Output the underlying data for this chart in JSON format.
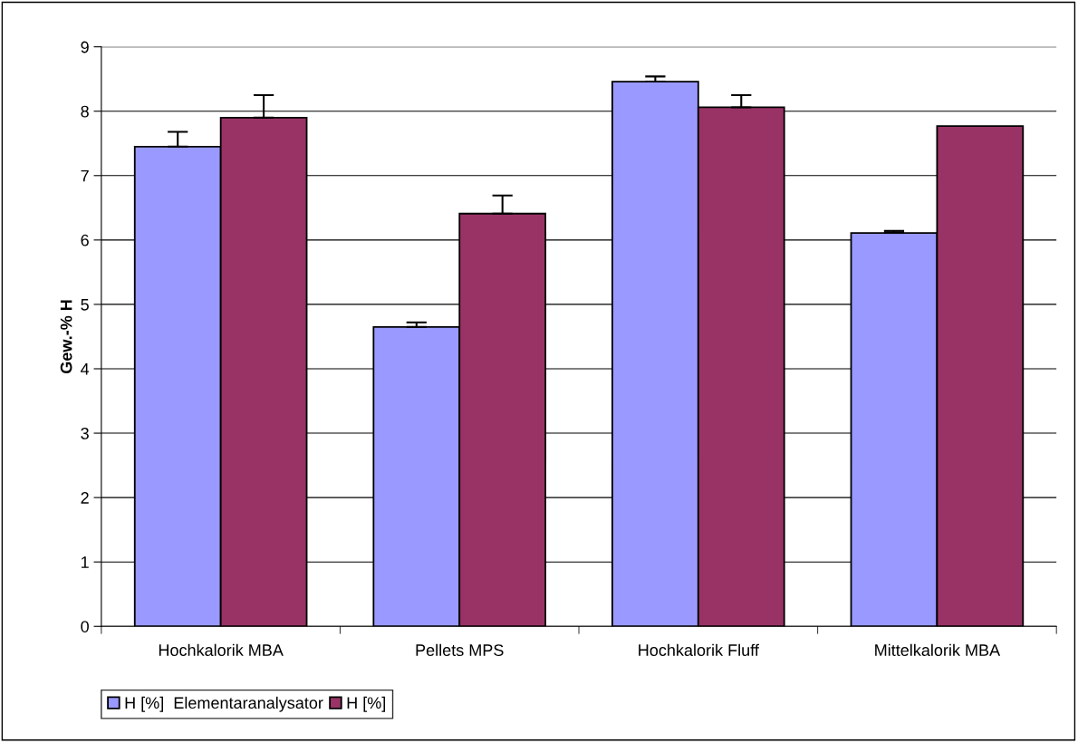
{
  "chart_data": {
    "type": "bar",
    "ylabel": "Gew.-% H",
    "categories": [
      "Hochkalorik MBA",
      "Pellets MPS",
      "Hochkalorik Fluff",
      "Mittelkalorik MBA"
    ],
    "series": [
      {
        "name": "H [%]  Elementaranalysator",
        "color": "#9999ff",
        "values": [
          7.45,
          4.65,
          8.46,
          6.11
        ],
        "errors": [
          0.23,
          0.07,
          0.08,
          0.03
        ]
      },
      {
        "name": "H [%]",
        "color": "#993366",
        "values": [
          7.9,
          6.41,
          8.06,
          7.77
        ],
        "errors": [
          0.35,
          0.28,
          0.19,
          null
        ]
      }
    ],
    "ylim": [
      0,
      9
    ],
    "yticks": [
      0,
      1,
      2,
      3,
      4,
      5,
      6,
      7,
      8,
      9
    ],
    "grid": "y",
    "legend": "bottom left"
  }
}
